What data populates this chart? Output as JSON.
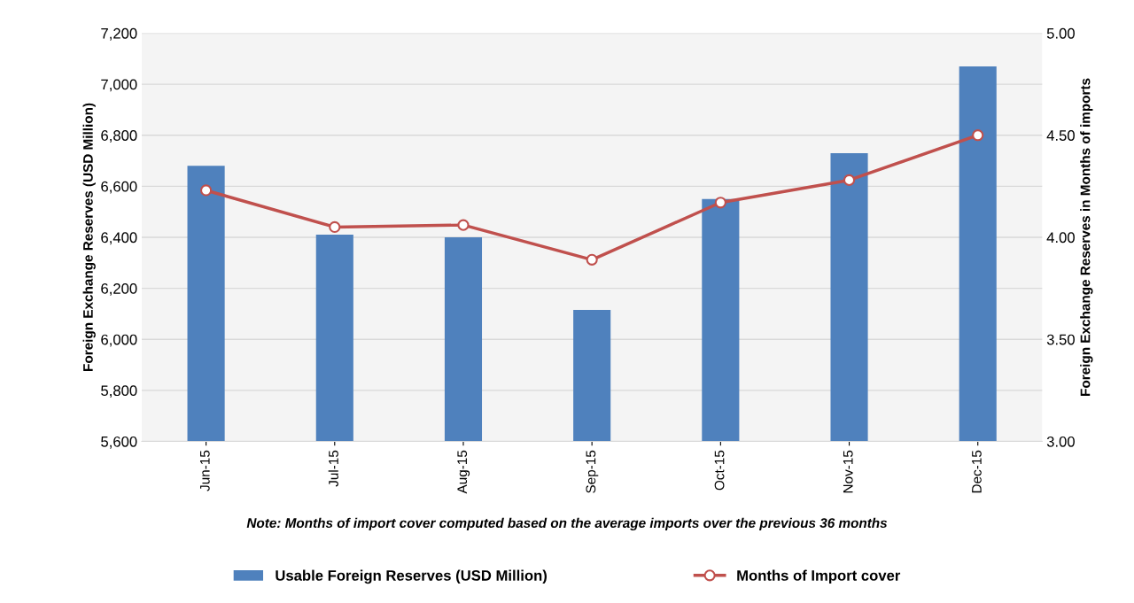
{
  "chart_data": {
    "type": "bar",
    "categories": [
      "Jun-15",
      "Jul-15",
      "Aug-15",
      "Sep-15",
      "Oct-15",
      "Nov-15",
      "Dec-15"
    ],
    "ylabel": "Foreign Exchange Reserves (USD Million)",
    "y2label": "Foreign Exchange Reserves in Months of imports",
    "series": [
      {
        "name": "Usable Foreign Reserves (USD Million)",
        "color": "#4f81bd",
        "values": [
          6680,
          6410,
          6400,
          6115,
          6550,
          6730,
          7070
        ]
      },
      {
        "name": "Months of Import cover",
        "type": "line",
        "axis": "y2",
        "color": "#c0504d",
        "marker": "circle",
        "values": [
          4.23,
          4.05,
          4.06,
          3.89,
          4.17,
          4.28,
          4.5
        ]
      }
    ],
    "ylim": [
      5600,
      7200
    ],
    "yticks": [
      {
        "value": 5600,
        "label": "5,600"
      },
      {
        "value": 5800,
        "label": "5,800"
      },
      {
        "value": 6000,
        "label": "6,000"
      },
      {
        "value": 6200,
        "label": "6,200"
      },
      {
        "value": 6400,
        "label": "6,400"
      },
      {
        "value": 6600,
        "label": "6,600"
      },
      {
        "value": 6800,
        "label": "6,800"
      },
      {
        "value": 7000,
        "label": "7,000"
      },
      {
        "value": 7200,
        "label": "7,200"
      }
    ],
    "y2lim": [
      3,
      5
    ],
    "y2ticks": [
      {
        "value": 3,
        "label": "3.00"
      },
      {
        "value": 3.5,
        "label": "3.50"
      },
      {
        "value": 4,
        "label": "4.00"
      },
      {
        "value": 4.5,
        "label": "4.50"
      },
      {
        "value": 5,
        "label": "5.00"
      }
    ],
    "grid": "y",
    "legend": "bottom",
    "annotations": [
      "Note: Months of import cover computed based on the average imports over the previous 36 months"
    ]
  }
}
